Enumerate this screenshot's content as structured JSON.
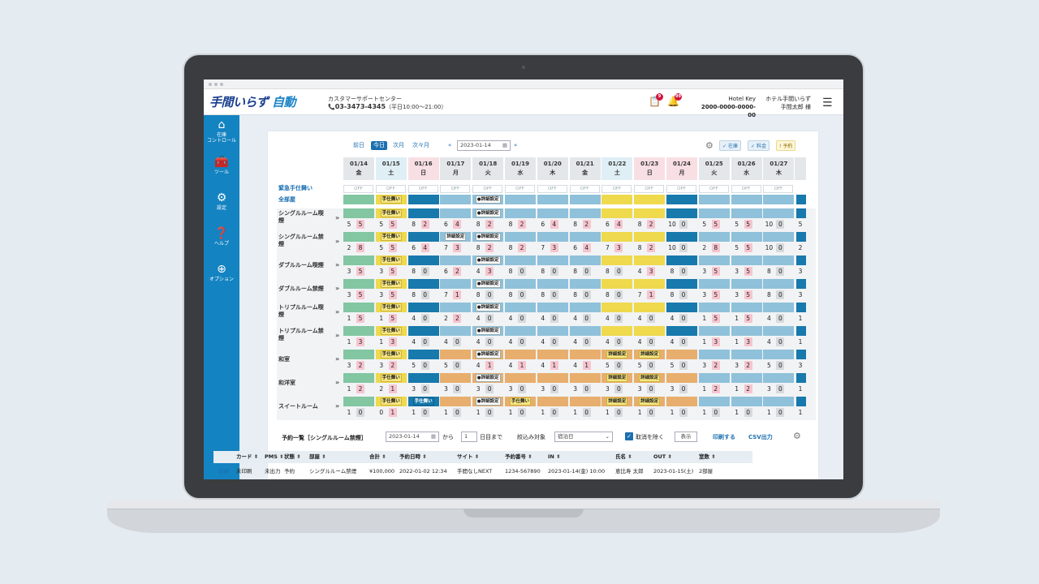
{
  "app": {
    "logo_part1": "手間いらず",
    "logo_part2": "自動",
    "support_title": "カスタマーサポートセンター",
    "support_phone": "03-3473-4345",
    "support_hours": "（平日10:00～21:00）",
    "task_count": "9",
    "bell_count": "99",
    "hotel_key_label": "Hotel Key",
    "hotel_key_value": "2000-0000-0000-00",
    "hotel_name": "ホテル手間いらず",
    "user_name": "手間太郎 様"
  },
  "sidebar": [
    {
      "label": "在庫\nコントロール",
      "icon": "home-icon"
    },
    {
      "label": "ツール",
      "icon": "toolbox-icon"
    },
    {
      "label": "設定",
      "icon": "gear-icon"
    },
    {
      "label": "ヘルプ",
      "icon": "help-icon"
    },
    {
      "label": "オプション",
      "icon": "plus-icon"
    }
  ],
  "toolbar": {
    "prev_day": "前日",
    "today": "今日",
    "next_month": "次月",
    "month_after": "次々月",
    "date": "2023-01-14",
    "legend_stock": "在庫",
    "legend_price": "料金",
    "legend_reserve": "予約"
  },
  "dates": [
    {
      "d": "01/14",
      "w": "金",
      "t": "n"
    },
    {
      "d": "01/15",
      "w": "土",
      "t": "sat"
    },
    {
      "d": "01/16",
      "w": "日",
      "t": "sun"
    },
    {
      "d": "01/17",
      "w": "月",
      "t": "n"
    },
    {
      "d": "01/18",
      "w": "火",
      "t": "n"
    },
    {
      "d": "01/19",
      "w": "水",
      "t": "n"
    },
    {
      "d": "01/20",
      "w": "木",
      "t": "n"
    },
    {
      "d": "01/21",
      "w": "金",
      "t": "n"
    },
    {
      "d": "01/22",
      "w": "土",
      "t": "sat"
    },
    {
      "d": "01/23",
      "w": "日",
      "t": "sun"
    },
    {
      "d": "01/24",
      "w": "月",
      "t": "sun"
    },
    {
      "d": "01/25",
      "w": "火",
      "t": "n"
    },
    {
      "d": "01/26",
      "w": "水",
      "t": "n"
    },
    {
      "d": "01/27",
      "w": "木",
      "t": "n"
    }
  ],
  "emergency_label": "緊急手仕舞い",
  "off_label": "OFF",
  "all_rooms_label": "全部屋",
  "tags": {
    "close": "手仕舞い",
    "detail": "詳細設定",
    "detail_dot": "●詳細設定"
  },
  "rooms": [
    {
      "name": "シングルルーム喫煙",
      "bars": "g,yt,db,lb,lbd,lb,lb,lb,y,y,db,lb,lb,lb",
      "nums": "5,5,5,5,8,2,6,4,8,2,8,2,6,4,8,2,6,4,8,2,10,0,5,5,5,5,10,0"
    },
    {
      "name": "シングルルーム禁煙",
      "bars": "g,yt,db,lbs,lbd,lb,lb,lb,y,y,db,lb,lb,lb",
      "nums": "2,8,5,5,6,4,7,3,8,2,8,2,7,3,6,4,7,3,8,2,10,0,2,8,5,5,10,0"
    },
    {
      "name": "ダブルルーム喫煙",
      "bars": "g,yt,db,lb,lbd,lb,lb,lb,y,y,db,lb,lb,lb",
      "nums": "3,5,3,5,8,0,6,2,4,3,8,0,8,0,8,0,8,0,4,3,8,0,3,5,3,5,8,0"
    },
    {
      "name": "ダブルルーム禁煙",
      "bars": "g,yt,db,lb,lbd,lb,lb,lb,y,y,db,lb,lb,lb",
      "nums": "3,5,3,5,8,0,7,1,8,0,8,0,8,0,8,0,8,0,7,1,8,0,3,5,3,5,8,0"
    },
    {
      "name": "トリプルルーム喫煙",
      "bars": "g,yt,db,lb,lbd,lb,lb,lb,y,y,db,lb,lb,lb",
      "nums": "1,5,1,5,4,0,2,2,4,0,4,0,4,0,4,0,4,0,4,0,4,0,1,5,1,5,4,0"
    },
    {
      "name": "トリプルルーム禁煙",
      "bars": "g,yt,db,lb,lbd,lb,lb,lb,y,y,db,lb,lb,lb",
      "nums": "1,3,1,3,4,0,4,0,4,0,4,0,4,0,4,0,4,0,4,0,4,0,1,3,1,3,4,0"
    },
    {
      "name": "和室",
      "bars": "g,yt,db,o,od,o,o,o,ys,ys,o,lb,lb,lb",
      "nums": "3,2,3,2,5,0,5,0,4,1,4,1,4,1,4,1,5,0,5,0,5,0,3,2,3,2,5,0"
    },
    {
      "name": "和洋室",
      "bars": "g,yt,db,o,od,o,o,o,ys,ys,o,lb,lb,lb",
      "nums": "1,2,2,1,3,0,3,0,3,0,3,0,3,0,3,0,3,0,3,0,3,0,1,2,1,2,3,0"
    },
    {
      "name": "スイートルーム",
      "bars": "g,yt,dbt,o,od,ot,o,o,ys,ys,o,lb,lb,lb",
      "nums": "1,0,0,1,1,0,1,0,1,0,1,0,1,0,1,0,1,0,1,0,1,0,1,0,1,0,1,0"
    }
  ],
  "reservations": {
    "title": "予約一覧［シングルルーム禁煙］",
    "date": "2023-01-14",
    "from": "から",
    "days": "1",
    "days_suffix": "日目まで",
    "filter_label": "絞込み対象",
    "filter_value": "宿泊日",
    "exclude_cancel": "取消を除く",
    "show": "表示",
    "print": "印刷する",
    "csv": "CSV出力",
    "columns": [
      "カード",
      "PMS",
      "状態",
      "部屋",
      "合計",
      "予約日時",
      "サイト",
      "予約番号",
      "IN",
      "氏名",
      "OUT",
      "室数"
    ],
    "row": {
      "detail": "詳細",
      "card": "未印刷",
      "pms": "未出力",
      "status": "予約",
      "room": "シングルルーム禁煙",
      "total": "¥100,000",
      "date": "2022-01-02 12:34",
      "site": "手間なしNEXT",
      "number": "1234-567890",
      "in": "2023-01-14(金) 10:00",
      "name": "恵比寿 太郎",
      "out": "2023-01-15(土)",
      "rooms": "2部屋"
    }
  }
}
